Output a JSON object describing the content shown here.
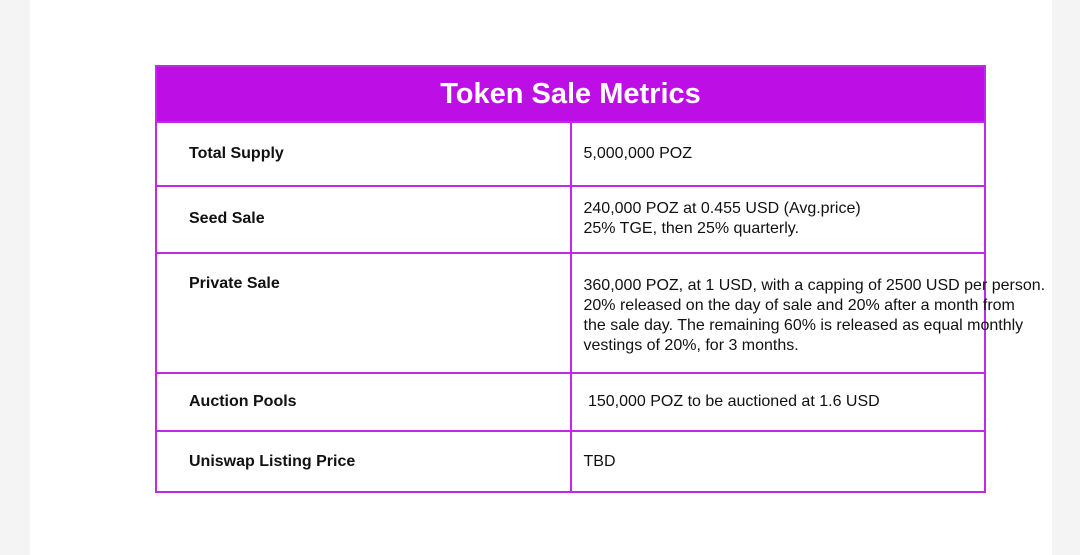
{
  "table": {
    "title": "Token Sale Metrics",
    "rows": [
      {
        "label": "Total Supply",
        "lines": [
          "5,000,000 POZ"
        ]
      },
      {
        "label": "Seed Sale",
        "lines": [
          "240,000 POZ at 0.455 USD (Avg.price)",
          "25% TGE, then 25% quarterly."
        ]
      },
      {
        "label": "Private Sale",
        "lines": [
          "360,000 POZ, at 1 USD, with a capping of 2500 USD per person.",
          "20% released on the day of sale and 20% after a month from",
          "the sale day. The remaining 60% is released as equal monthly",
          "vestings of 20%, for 3 months."
        ]
      },
      {
        "label": "Auction Pools",
        "lines": [
          " 150,000 POZ to be auctioned at 1.6 USD"
        ]
      },
      {
        "label": "Uniswap Listing Price",
        "lines": [
          "TBD"
        ]
      }
    ]
  },
  "colors": {
    "header_bg": "#bd0ee6",
    "border": "#c02ae6"
  }
}
